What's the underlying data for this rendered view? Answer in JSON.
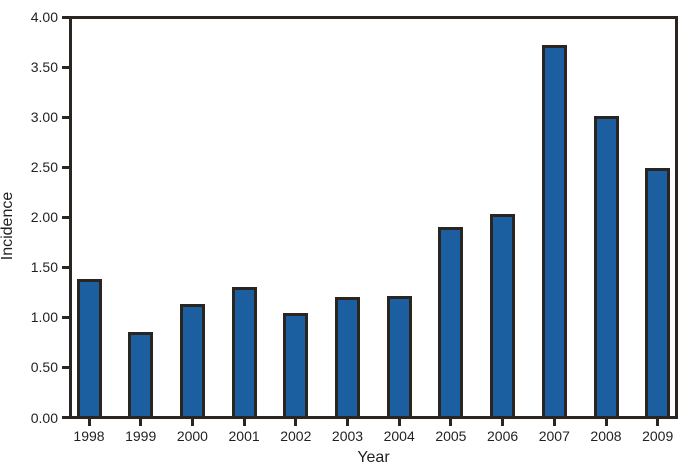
{
  "chart_data": {
    "type": "bar",
    "title": "",
    "xlabel": "Year",
    "ylabel": "Incidence",
    "categories": [
      "1998",
      "1999",
      "2000",
      "2001",
      "2002",
      "2003",
      "2004",
      "2005",
      "2006",
      "2007",
      "2008",
      "2009"
    ],
    "values": [
      1.38,
      0.85,
      1.13,
      1.3,
      1.04,
      1.2,
      1.21,
      1.9,
      2.03,
      3.72,
      3.01,
      2.49
    ],
    "ylim": [
      0,
      4
    ],
    "ytick_step": 0.5,
    "ytick_labels": [
      "0.00",
      "0.50",
      "1.00",
      "1.50",
      "2.00",
      "2.50",
      "3.00",
      "3.50",
      "4.00"
    ],
    "grid": false,
    "legend_position": "none",
    "colors": {
      "bar_fill": "#1c5fa0",
      "bar_border": "#2b2522",
      "axis": "#2b2522",
      "text": "#231f20"
    }
  }
}
